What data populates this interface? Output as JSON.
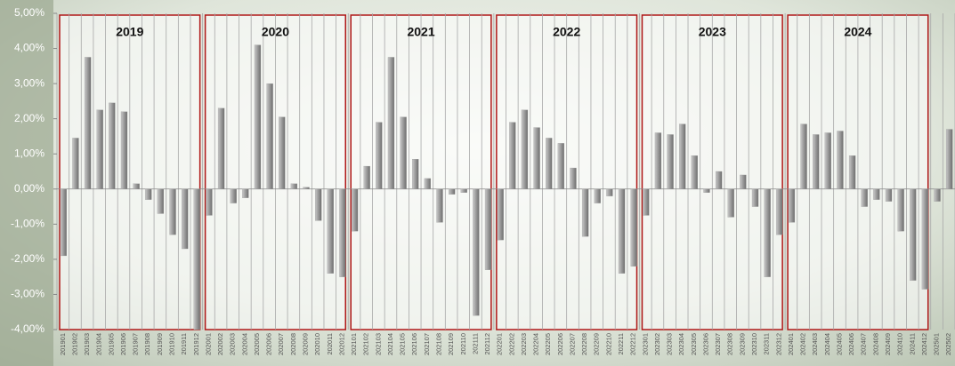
{
  "chart_data": {
    "type": "bar",
    "categories": [
      "201901",
      "201902",
      "201903",
      "201904",
      "201905",
      "201906",
      "201907",
      "201908",
      "201909",
      "201910",
      "201911",
      "201912",
      "202001",
      "202002",
      "202003",
      "202004",
      "202005",
      "202006",
      "202007",
      "202008",
      "202009",
      "202010",
      "202011",
      "202012",
      "202101",
      "202102",
      "202103",
      "202104",
      "202105",
      "202106",
      "202107",
      "202108",
      "202109",
      "202110",
      "202111",
      "202112",
      "202201",
      "202202",
      "202203",
      "202204",
      "202205",
      "202206",
      "202207",
      "202208",
      "202209",
      "202210",
      "202211",
      "202212",
      "202301",
      "202302",
      "202303",
      "202304",
      "202305",
      "202306",
      "202307",
      "202308",
      "202309",
      "202310",
      "202311",
      "202312",
      "202401",
      "202402",
      "202403",
      "202404",
      "202405",
      "202406",
      "202407",
      "202408",
      "202409",
      "202410",
      "202411",
      "202412",
      "202501",
      "202502"
    ],
    "values": [
      -1.9,
      1.45,
      3.75,
      2.25,
      2.45,
      2.2,
      0.15,
      -0.3,
      -0.7,
      -1.3,
      -1.7,
      -4.0,
      -0.75,
      2.3,
      -0.4,
      -0.25,
      4.1,
      3.0,
      2.05,
      0.15,
      0.05,
      -0.9,
      -2.4,
      -2.5,
      -1.2,
      0.65,
      1.9,
      3.75,
      2.05,
      0.85,
      0.3,
      -0.95,
      -0.15,
      -0.1,
      -3.6,
      -2.3,
      -1.45,
      1.9,
      2.25,
      1.75,
      1.45,
      1.3,
      0.6,
      -1.35,
      -0.4,
      -0.2,
      -2.4,
      -2.2,
      -0.75,
      1.6,
      1.55,
      1.85,
      0.95,
      -0.1,
      0.5,
      -0.8,
      0.4,
      -0.5,
      -2.5,
      -1.3,
      -0.95,
      1.85,
      1.55,
      1.6,
      1.65,
      0.95,
      -0.5,
      -0.3,
      -0.35,
      -1.2,
      -2.6,
      -2.85,
      -0.35,
      1.7
    ],
    "color": "#9a9a9a",
    "ylim": [
      -4,
      5
    ],
    "yticks": [
      {
        "value": -4,
        "label": "-4,00%"
      },
      {
        "value": -3,
        "label": "-3,00%"
      },
      {
        "value": -2,
        "label": "-2,00%"
      },
      {
        "value": -1,
        "label": "-1,00%"
      },
      {
        "value": 0,
        "label": "0,00%"
      },
      {
        "value": 1,
        "label": "1,00%"
      },
      {
        "value": 2,
        "label": "2,00%"
      },
      {
        "value": 3,
        "label": "3,00%"
      },
      {
        "value": 4,
        "label": "4,00%"
      },
      {
        "value": 5,
        "label": "5,00%"
      }
    ],
    "year_labels": [
      "2019",
      "2020",
      "2021",
      "2022",
      "2023",
      "2024"
    ],
    "box_color": "#b01818",
    "grid": true
  }
}
